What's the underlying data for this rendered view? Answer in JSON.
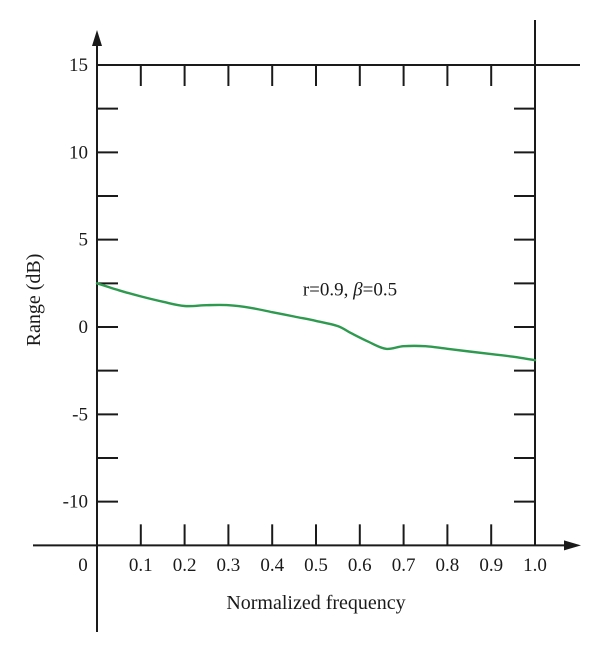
{
  "chart_data": {
    "type": "line",
    "title": "",
    "xlabel": "Normalized frequency",
    "ylabel": "Range (dB)",
    "xlim": [
      0,
      1.0
    ],
    "ylim": [
      -12.5,
      15
    ],
    "x_ticks": [
      "0",
      "0.1",
      "0.2",
      "0.3",
      "0.4",
      "0.5",
      "0.6",
      "0.7",
      "0.8",
      "0.9",
      "1.0"
    ],
    "y_ticks": [
      "15",
      "10",
      "5",
      "0",
      "-5",
      "-10"
    ],
    "grid": false,
    "series": [
      {
        "name": "r=0.9, β=0.5",
        "color": "#2e9a4f",
        "x": [
          0,
          0.05,
          0.1,
          0.15,
          0.2,
          0.25,
          0.3,
          0.35,
          0.4,
          0.45,
          0.5,
          0.55,
          0.58,
          0.62,
          0.66,
          0.7,
          0.75,
          0.8,
          0.85,
          0.9,
          0.95,
          1.0
        ],
        "values": [
          2.5,
          2.1,
          1.75,
          1.45,
          1.2,
          1.25,
          1.25,
          1.1,
          0.85,
          0.6,
          0.35,
          0.05,
          -0.35,
          -0.85,
          -1.25,
          -1.1,
          -1.1,
          -1.25,
          -1.4,
          -1.55,
          -1.7,
          -1.9
        ]
      }
    ],
    "annotations": [
      {
        "text_prefix": "r=0.9, ",
        "symbol": "β",
        "text_suffix": "=0.5",
        "x": 0.47,
        "y": 1.8
      }
    ]
  }
}
